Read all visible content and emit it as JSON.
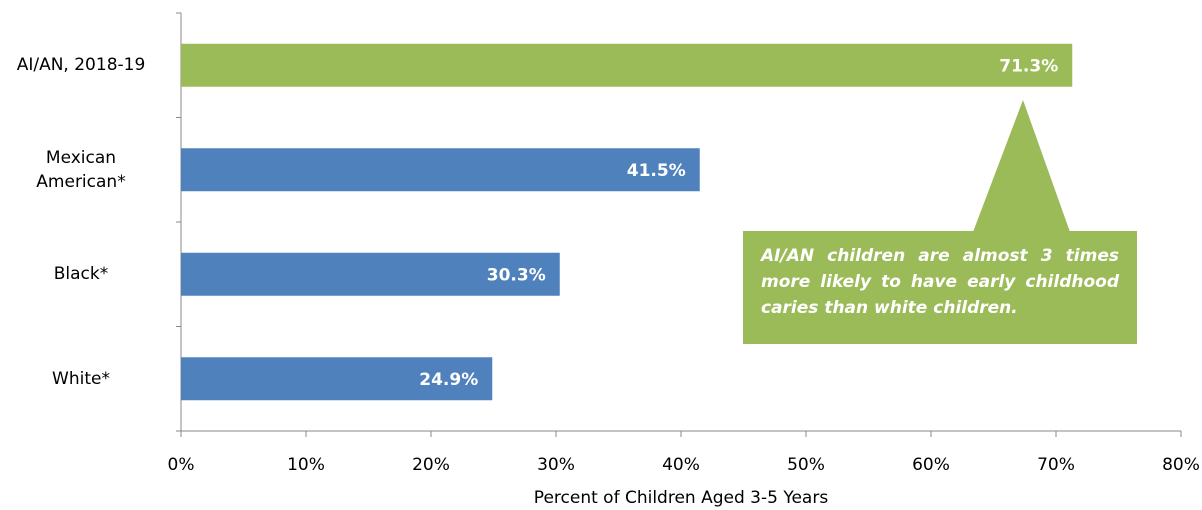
{
  "chart_data": {
    "type": "bar",
    "orientation": "horizontal",
    "categories": [
      "AI/AN, 2018-19",
      "Mexican\nAmerican*",
      "Black*",
      "White*"
    ],
    "values": [
      71.3,
      41.5,
      30.3,
      24.9
    ],
    "value_labels": [
      "71.3%",
      "41.5%",
      "30.3%",
      "24.9%"
    ],
    "colors": [
      "#9bbb59",
      "#4f81bd",
      "#4f81bd",
      "#4f81bd"
    ],
    "xlabel": "Percent of Children Aged 3-5 Years",
    "xlim": [
      0,
      80
    ],
    "xticks": [
      {
        "value": 0,
        "label": "0%"
      },
      {
        "value": 10,
        "label": "10%"
      },
      {
        "value": 20,
        "label": "20%"
      },
      {
        "value": 30,
        "label": "30%"
      },
      {
        "value": 40,
        "label": "40%"
      },
      {
        "value": 50,
        "label": "50%"
      },
      {
        "value": 60,
        "label": "60%"
      },
      {
        "value": 70,
        "label": "70%"
      },
      {
        "value": 80,
        "label": "80%"
      }
    ],
    "annotation": "AI/AN children are almost 3 times more likely to have early childhood caries than white children.",
    "annotation_color": "#9bbb59",
    "grid": false
  }
}
